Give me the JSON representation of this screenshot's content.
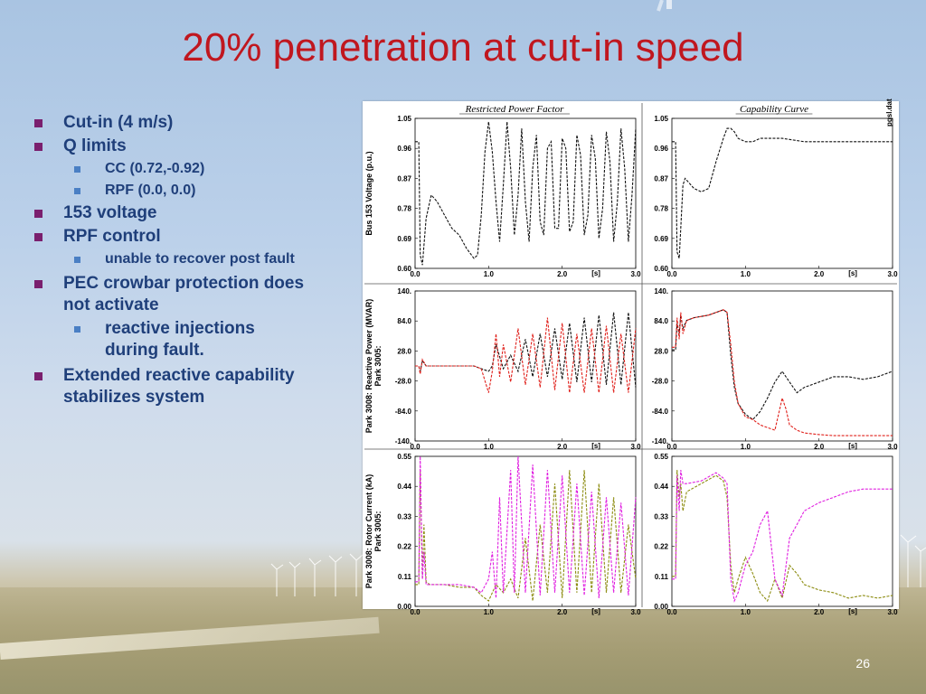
{
  "slide": {
    "title": "20% penetration at cut-in speed",
    "page_number": "26"
  },
  "bullets": [
    {
      "text": "Cut-in (4 m/s)",
      "children": []
    },
    {
      "text": "Q limits",
      "children": [
        "CC  (0.72,-0.92)",
        "RPF  (0.0, 0.0)"
      ]
    },
    {
      "text": "153 voltage",
      "children": []
    },
    {
      "text": "RPF control",
      "children": [
        "unable to recover post fault"
      ]
    },
    {
      "text": "PEC crowbar protection does not activate",
      "children": [
        "reactive injections during fault."
      ]
    },
    {
      "text": "Extended reactive capability stabilizes system",
      "children": []
    }
  ],
  "figure": {
    "column_titles": [
      "Restricted Power Factor",
      "Capability Curve"
    ],
    "watermark": "pgsl.dat",
    "colors": {
      "black": "#111111",
      "red": "#e0201b",
      "magenta": "#e020e0",
      "olive": "#8c8c10"
    },
    "chart_data": [
      {
        "type": "line",
        "row": 0,
        "col": 0,
        "ylabel": "Bus 153 Voltage (p.u.)",
        "legend_lines": [
          "Bus 153 Voltage (p.u.)"
        ],
        "xlabel": "[s]",
        "xlim": [
          0,
          3
        ],
        "ylim": [
          0.6,
          1.05
        ],
        "x_ticks": [
          "0.0",
          "1.0",
          "2.0",
          "3.0"
        ],
        "y_ticks": [
          "1.05",
          "0.96",
          "0.87",
          "0.78",
          "0.69",
          "0.60"
        ],
        "series": [
          {
            "color": "black",
            "style": "dashed",
            "x": [
              0.0,
              0.05,
              0.07,
              0.1,
              0.15,
              0.22,
              0.3,
              0.4,
              0.5,
              0.6,
              0.7,
              0.8,
              0.85,
              0.9,
              0.95,
              1.0,
              1.05,
              1.1,
              1.15,
              1.2,
              1.25,
              1.3,
              1.35,
              1.4,
              1.45,
              1.5,
              1.55,
              1.6,
              1.65,
              1.7,
              1.75,
              1.8,
              1.85,
              1.9,
              1.95,
              2.0,
              2.05,
              2.1,
              2.15,
              2.2,
              2.25,
              2.3,
              2.35,
              2.4,
              2.45,
              2.5,
              2.55,
              2.6,
              2.65,
              2.7,
              2.75,
              2.8,
              2.85,
              2.9,
              2.95,
              3.0
            ],
            "y": [
              0.98,
              0.98,
              0.64,
              0.61,
              0.75,
              0.82,
              0.8,
              0.76,
              0.72,
              0.7,
              0.66,
              0.63,
              0.64,
              0.76,
              0.95,
              1.04,
              0.95,
              0.8,
              0.68,
              0.85,
              1.04,
              0.9,
              0.7,
              0.82,
              1.02,
              0.8,
              0.68,
              0.9,
              1.0,
              0.74,
              0.7,
              0.96,
              0.98,
              0.72,
              0.72,
              0.99,
              0.96,
              0.71,
              0.74,
              1.0,
              0.94,
              0.7,
              0.76,
              1.0,
              0.93,
              0.69,
              0.78,
              1.01,
              0.92,
              0.68,
              0.8,
              1.02,
              0.9,
              0.68,
              0.82,
              1.02
            ]
          }
        ]
      },
      {
        "type": "line",
        "row": 0,
        "col": 1,
        "xlabel": "[s]",
        "xlim": [
          0,
          3
        ],
        "ylim": [
          0.6,
          1.05
        ],
        "x_ticks": [
          "0.0",
          "1.0",
          "2.0",
          "3.0"
        ],
        "y_ticks": [
          "1.05",
          "0.96",
          "0.87",
          "0.78",
          "0.69",
          "0.60"
        ],
        "series": [
          {
            "color": "black",
            "style": "dashed",
            "x": [
              0.0,
              0.05,
              0.07,
              0.1,
              0.12,
              0.15,
              0.18,
              0.22,
              0.3,
              0.4,
              0.5,
              0.6,
              0.7,
              0.75,
              0.8,
              0.85,
              0.9,
              1.0,
              1.1,
              1.2,
              1.3,
              1.5,
              1.8,
              2.2,
              2.6,
              3.0
            ],
            "y": [
              0.98,
              0.98,
              0.65,
              0.63,
              0.72,
              0.85,
              0.87,
              0.86,
              0.84,
              0.83,
              0.84,
              0.92,
              0.99,
              1.02,
              1.02,
              1.01,
              0.99,
              0.98,
              0.98,
              0.99,
              0.99,
              0.99,
              0.98,
              0.98,
              0.98,
              0.98
            ]
          }
        ]
      },
      {
        "type": "line",
        "row": 1,
        "col": 0,
        "ylabel": "Reactive Power (MVAR)",
        "legend_lines": [
          "Park 3008: Reactive Power (MVAR)",
          "Park 3005:"
        ],
        "xlabel": "[s]",
        "xlim": [
          0,
          3
        ],
        "ylim": [
          -140,
          140
        ],
        "x_ticks": [
          "0.0",
          "1.0",
          "2.0",
          "3.0"
        ],
        "y_ticks": [
          "140.",
          "84.0",
          "28.0",
          "-28.0",
          "-84.0",
          "-140."
        ],
        "series": [
          {
            "color": "black",
            "style": "dashed",
            "x": [
              0.0,
              0.05,
              0.07,
              0.1,
              0.15,
              0.2,
              0.5,
              0.8,
              0.9,
              1.0,
              1.05,
              1.1,
              1.2,
              1.3,
              1.4,
              1.5,
              1.6,
              1.7,
              1.8,
              1.9,
              2.0,
              2.1,
              2.2,
              2.3,
              2.4,
              2.5,
              2.6,
              2.7,
              2.8,
              2.9,
              3.0
            ],
            "y": [
              0,
              0,
              -10,
              10,
              0,
              0,
              0,
              0,
              -5,
              -10,
              0,
              40,
              -5,
              20,
              -10,
              50,
              -20,
              60,
              -20,
              70,
              -25,
              80,
              -30,
              90,
              -30,
              95,
              -35,
              100,
              -35,
              100,
              -40
            ]
          },
          {
            "color": "red",
            "style": "dashed",
            "x": [
              0.0,
              0.05,
              0.07,
              0.1,
              0.15,
              0.2,
              0.5,
              0.8,
              0.9,
              1.0,
              1.05,
              1.1,
              1.15,
              1.2,
              1.3,
              1.4,
              1.5,
              1.6,
              1.7,
              1.8,
              1.9,
              2.0,
              2.1,
              2.2,
              2.3,
              2.4,
              2.5,
              2.6,
              2.7,
              2.8,
              2.9,
              3.0
            ],
            "y": [
              0,
              0,
              -15,
              12,
              0,
              0,
              0,
              0,
              -5,
              -50,
              -10,
              60,
              -20,
              40,
              -30,
              70,
              -35,
              60,
              -40,
              90,
              -45,
              80,
              -50,
              60,
              -50,
              70,
              -50,
              75,
              -50,
              60,
              -50,
              70
            ]
          }
        ]
      },
      {
        "type": "line",
        "row": 1,
        "col": 1,
        "xlabel": "[s]",
        "xlim": [
          0,
          3
        ],
        "ylim": [
          -140,
          140
        ],
        "x_ticks": [
          "0.0",
          "1.0",
          "2.0",
          "3.0"
        ],
        "y_ticks": [
          "140.",
          "84.0",
          "28.0",
          "-28.0",
          "-84.0",
          "-140."
        ],
        "series": [
          {
            "color": "black",
            "style": "dashed",
            "x": [
              0.0,
              0.05,
              0.07,
              0.1,
              0.12,
              0.15,
              0.2,
              0.3,
              0.5,
              0.7,
              0.75,
              0.8,
              0.85,
              0.9,
              1.0,
              1.1,
              1.2,
              1.3,
              1.4,
              1.5,
              1.6,
              1.7,
              1.8,
              2.0,
              2.2,
              2.4,
              2.6,
              2.8,
              3.0
            ],
            "y": [
              30,
              30,
              80,
              60,
              95,
              70,
              85,
              90,
              95,
              105,
              100,
              20,
              -40,
              -70,
              -90,
              -100,
              -85,
              -60,
              -30,
              -10,
              -30,
              -50,
              -40,
              -30,
              -20,
              -20,
              -25,
              -20,
              -10
            ]
          },
          {
            "color": "red",
            "style": "dashed",
            "x": [
              0.0,
              0.05,
              0.07,
              0.1,
              0.12,
              0.15,
              0.2,
              0.3,
              0.5,
              0.7,
              0.75,
              0.8,
              0.85,
              0.9,
              1.0,
              1.1,
              1.2,
              1.3,
              1.4,
              1.5,
              1.55,
              1.6,
              1.7,
              1.8,
              2.0,
              2.2,
              2.5,
              2.8,
              3.0
            ],
            "y": [
              35,
              35,
              90,
              50,
              100,
              60,
              85,
              90,
              95,
              105,
              100,
              40,
              -30,
              -70,
              -95,
              -100,
              -110,
              -115,
              -120,
              -60,
              -80,
              -110,
              -120,
              -125,
              -128,
              -130,
              -130,
              -130,
              -130
            ]
          }
        ]
      },
      {
        "type": "line",
        "row": 2,
        "col": 0,
        "ylabel": "Rotor Current (kA)",
        "legend_lines": [
          "Park 3008: Rotor Current (kA)",
          "Park 3005:"
        ],
        "xlabel": "[s]",
        "xlim": [
          0,
          3
        ],
        "ylim": [
          0,
          0.55
        ],
        "x_ticks": [
          "0.0",
          "1.0",
          "2.0",
          "3.0"
        ],
        "y_ticks": [
          "0.55",
          "0.44",
          "0.33",
          "0.22",
          "0.11",
          "0.00"
        ],
        "series": [
          {
            "color": "olive",
            "style": "dashed",
            "x": [
              0.0,
              0.05,
              0.07,
              0.1,
              0.12,
              0.15,
              0.2,
              0.4,
              0.6,
              0.8,
              0.9,
              1.0,
              1.1,
              1.2,
              1.3,
              1.4,
              1.5,
              1.6,
              1.7,
              1.8,
              1.9,
              2.0,
              2.1,
              2.2,
              2.3,
              2.4,
              2.5,
              2.6,
              2.7,
              2.8,
              2.9,
              3.0
            ],
            "y": [
              0.08,
              0.08,
              0.5,
              0.1,
              0.3,
              0.09,
              0.08,
              0.08,
              0.07,
              0.07,
              0.04,
              0.02,
              0.08,
              0.05,
              0.1,
              0.03,
              0.25,
              0.02,
              0.3,
              0.05,
              0.45,
              0.03,
              0.5,
              0.05,
              0.5,
              0.05,
              0.45,
              0.05,
              0.4,
              0.05,
              0.3,
              0.1
            ]
          },
          {
            "color": "magenta",
            "style": "dashed",
            "x": [
              0.0,
              0.05,
              0.07,
              0.1,
              0.12,
              0.15,
              0.2,
              0.4,
              0.6,
              0.8,
              0.9,
              1.0,
              1.05,
              1.1,
              1.15,
              1.2,
              1.3,
              1.35,
              1.4,
              1.5,
              1.6,
              1.7,
              1.8,
              1.9,
              2.0,
              2.1,
              2.2,
              2.3,
              2.4,
              2.5,
              2.6,
              2.7,
              2.8,
              2.9,
              3.0
            ],
            "y": [
              0.09,
              0.09,
              0.55,
              0.1,
              0.2,
              0.08,
              0.08,
              0.08,
              0.08,
              0.07,
              0.05,
              0.1,
              0.2,
              0.03,
              0.4,
              0.05,
              0.5,
              0.05,
              0.55,
              0.05,
              0.52,
              0.04,
              0.5,
              0.05,
              0.48,
              0.05,
              0.45,
              0.04,
              0.42,
              0.03,
              0.4,
              0.05,
              0.38,
              0.04,
              0.4
            ]
          }
        ]
      },
      {
        "type": "line",
        "row": 2,
        "col": 1,
        "xlabel": "[s]",
        "xlim": [
          0,
          3
        ],
        "ylim": [
          0,
          0.55
        ],
        "x_ticks": [
          "0.0",
          "1.0",
          "2.0",
          "3.0"
        ],
        "y_ticks": [
          "0.55",
          "0.44",
          "0.33",
          "0.22",
          "0.11",
          "0.00"
        ],
        "series": [
          {
            "color": "olive",
            "style": "dashed",
            "x": [
              0.0,
              0.05,
              0.07,
              0.1,
              0.12,
              0.15,
              0.2,
              0.4,
              0.6,
              0.7,
              0.75,
              0.8,
              0.85,
              0.9,
              1.0,
              1.1,
              1.2,
              1.3,
              1.4,
              1.5,
              1.6,
              1.7,
              1.8,
              2.0,
              2.2,
              2.4,
              2.6,
              2.8,
              3.0
            ],
            "y": [
              0.11,
              0.11,
              0.5,
              0.4,
              0.45,
              0.35,
              0.42,
              0.45,
              0.48,
              0.46,
              0.4,
              0.15,
              0.05,
              0.1,
              0.18,
              0.12,
              0.05,
              0.02,
              0.1,
              0.03,
              0.15,
              0.12,
              0.08,
              0.06,
              0.05,
              0.03,
              0.04,
              0.03,
              0.04
            ]
          },
          {
            "color": "magenta",
            "style": "dashed",
            "x": [
              0.0,
              0.05,
              0.07,
              0.1,
              0.12,
              0.15,
              0.2,
              0.4,
              0.6,
              0.7,
              0.75,
              0.8,
              0.85,
              0.9,
              1.0,
              1.1,
              1.2,
              1.3,
              1.4,
              1.5,
              1.6,
              1.7,
              1.8,
              2.0,
              2.2,
              2.4,
              2.6,
              2.8,
              3.0
            ],
            "y": [
              0.1,
              0.1,
              0.48,
              0.35,
              0.5,
              0.45,
              0.45,
              0.46,
              0.49,
              0.47,
              0.45,
              0.1,
              0.02,
              0.05,
              0.15,
              0.2,
              0.3,
              0.35,
              0.1,
              0.04,
              0.25,
              0.3,
              0.35,
              0.38,
              0.4,
              0.42,
              0.43,
              0.43,
              0.43
            ]
          }
        ]
      }
    ]
  }
}
